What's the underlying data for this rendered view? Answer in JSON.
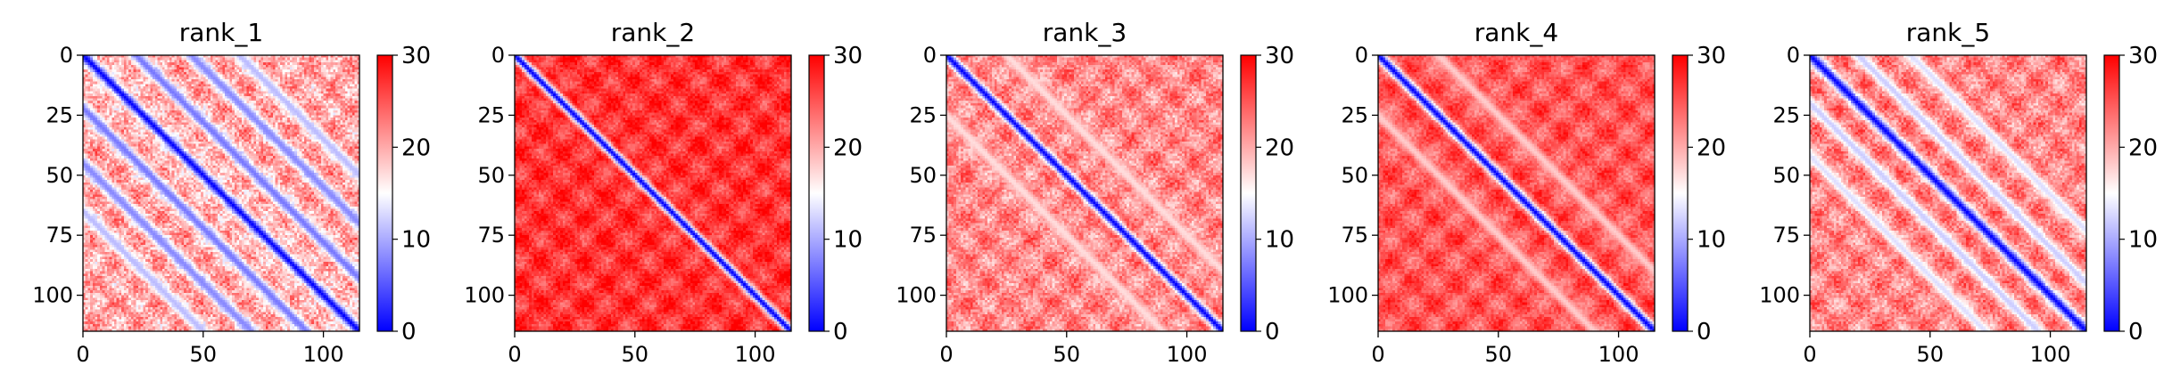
{
  "chart_data": [
    {
      "type": "heatmap",
      "title": "rank_1",
      "xlim": [
        0,
        115
      ],
      "ylim": [
        115,
        0
      ],
      "x_ticks": [
        0,
        50,
        100
      ],
      "y_ticks": [
        0,
        25,
        50,
        75,
        100
      ],
      "colorbar": {
        "range": [
          0,
          30
        ],
        "ticks": [
          0,
          10,
          20,
          30
        ],
        "colormap": "bwr"
      },
      "pattern": {
        "background": 20,
        "diag_width": 3.5,
        "bands": [
          {
            "offset": 22,
            "value": 7
          },
          {
            "offset": 45,
            "value": 8
          },
          {
            "offset": 65,
            "value": 11
          }
        ],
        "noise": 4
      }
    },
    {
      "type": "heatmap",
      "title": "rank_2",
      "xlim": [
        0,
        115
      ],
      "ylim": [
        115,
        0
      ],
      "x_ticks": [
        0,
        50,
        100
      ],
      "y_ticks": [
        0,
        25,
        50,
        75,
        100
      ],
      "colorbar": {
        "range": [
          0,
          30
        ],
        "ticks": [
          0,
          10,
          20,
          30
        ],
        "colormap": "bwr"
      },
      "pattern": {
        "background": 27,
        "diag_width": 3,
        "bands": [],
        "noise": 2
      }
    },
    {
      "type": "heatmap",
      "title": "rank_3",
      "xlim": [
        0,
        115
      ],
      "ylim": [
        115,
        0
      ],
      "x_ticks": [
        0,
        50,
        100
      ],
      "y_ticks": [
        0,
        25,
        50,
        75,
        100
      ],
      "colorbar": {
        "range": [
          0,
          30
        ],
        "ticks": [
          0,
          10,
          20,
          30
        ],
        "colormap": "bwr"
      },
      "pattern": {
        "background": 22,
        "diag_width": 3,
        "bands": [
          {
            "offset": 25,
            "value": 17
          }
        ],
        "noise": 3
      }
    },
    {
      "type": "heatmap",
      "title": "rank_4",
      "xlim": [
        0,
        115
      ],
      "ylim": [
        115,
        0
      ],
      "x_ticks": [
        0,
        50,
        100
      ],
      "y_ticks": [
        0,
        25,
        50,
        75,
        100
      ],
      "colorbar": {
        "range": [
          0,
          30
        ],
        "ticks": [
          0,
          10,
          20,
          30
        ],
        "colormap": "bwr"
      },
      "pattern": {
        "background": 25,
        "diag_width": 3,
        "bands": [
          {
            "offset": 25,
            "value": 18
          }
        ],
        "noise": 2
      }
    },
    {
      "type": "heatmap",
      "title": "rank_5",
      "xlim": [
        0,
        115
      ],
      "ylim": [
        115,
        0
      ],
      "x_ticks": [
        0,
        50,
        100
      ],
      "y_ticks": [
        0,
        25,
        50,
        75,
        100
      ],
      "colorbar": {
        "range": [
          0,
          30
        ],
        "ticks": [
          0,
          10,
          20,
          30
        ],
        "colormap": "bwr"
      },
      "pattern": {
        "background": 22,
        "diag_width": 3.5,
        "bands": [
          {
            "offset": 20,
            "value": 12
          },
          {
            "offset": 42,
            "value": 13
          }
        ],
        "noise": 3
      }
    }
  ]
}
